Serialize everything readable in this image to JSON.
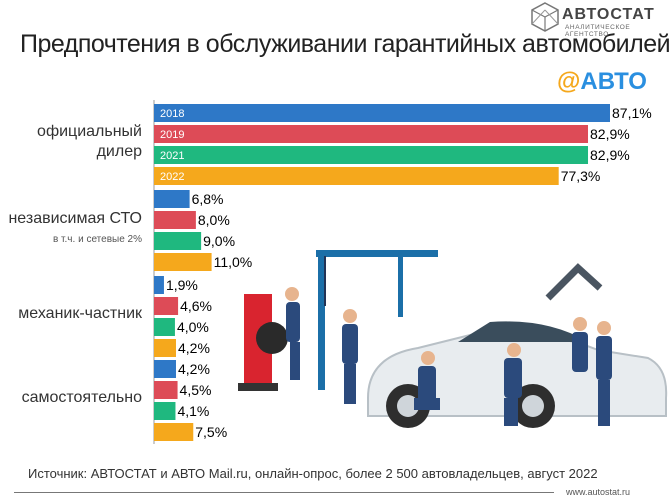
{
  "title": "Предпочтения в обслуживании гарантийных автомобилей",
  "logo": {
    "name": "АВТОСТАТ",
    "subtitle": "АНАЛИТИЧЕСКОЕ АГЕНТСТВО"
  },
  "badge": {
    "symbol": "@",
    "text": "АВТО"
  },
  "source": "Источник: АВТОСТАТ и АВТО Mail.ru, онлайн-опрос, более 2 500 автовладельцев, август 2022",
  "site": "www.autostat.ru",
  "colors": {
    "2018": "#2e78c7",
    "2019": "#dd4b57",
    "2021": "#1fb87f",
    "2022": "#f5a81c"
  },
  "chart_data": {
    "type": "bar",
    "orientation": "horizontal",
    "categories": [
      "официальный дилер",
      "независимая СТО",
      "механик-частник",
      "самостоятельно"
    ],
    "category_notes": [
      "",
      "в т.ч. и сетевые 2%",
      "",
      ""
    ],
    "series": [
      {
        "name": "2018",
        "values": [
          87.1,
          6.8,
          1.9,
          4.2
        ]
      },
      {
        "name": "2019",
        "values": [
          82.9,
          8.0,
          4.6,
          4.5
        ]
      },
      {
        "name": "2021",
        "values": [
          82.9,
          9.0,
          4.0,
          4.1
        ]
      },
      {
        "name": "2022",
        "values": [
          77.3,
          11.0,
          4.2,
          7.5
        ]
      }
    ],
    "value_labels": [
      [
        "87,1%",
        "6,8%",
        "1,9%",
        "4,2%"
      ],
      [
        "82,9%",
        "8,0%",
        "4,6%",
        "4,5%"
      ],
      [
        "82,9%",
        "9,0%",
        "4,0%",
        "4,1%"
      ],
      [
        "77,3%",
        "11,0%",
        "4,2%",
        "7,5%"
      ]
    ],
    "unit": "%",
    "legend": "inside first group bars",
    "grid": false
  }
}
